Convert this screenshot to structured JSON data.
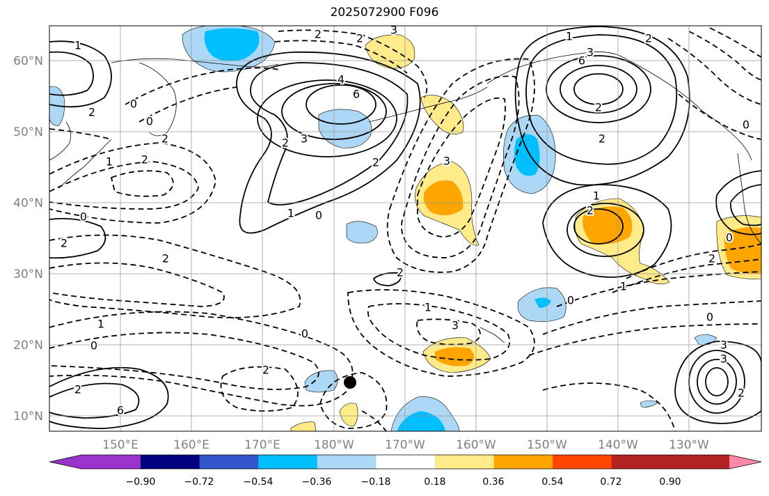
{
  "title": "2025072900 F096",
  "map": {
    "lon_ticks": [
      "150°E",
      "160°E",
      "170°E",
      "180°W",
      "170°W",
      "160°W",
      "150°W",
      "140°W",
      "130°W"
    ],
    "lat_ticks": [
      "60°N",
      "50°N",
      "40°N",
      "30°N",
      "20°N",
      "10°N"
    ],
    "contour_labels": [
      "1",
      "2",
      "0",
      "2",
      "2",
      "1",
      "0",
      "2",
      "2",
      "3",
      "4",
      "6",
      "2",
      "3",
      "2",
      "1",
      "0",
      "0",
      "2",
      "3",
      "1",
      "2",
      "3",
      "6",
      "2",
      "2",
      "1",
      "2",
      "0",
      "0",
      "2",
      "2",
      "1",
      "0",
      "2",
      "1",
      "0",
      "1",
      "0",
      "3",
      "2",
      "0",
      "2",
      "6",
      "2",
      "3",
      "3"
    ]
  },
  "colorbar": {
    "ticks": [
      "−0.90",
      "−0.72",
      "−0.54",
      "−0.36",
      "−0.18",
      "0.18",
      "0.36",
      "0.54",
      "0.72",
      "0.90"
    ],
    "colors": [
      "#9933cc",
      "#000080",
      "#3355cc",
      "#00bfff",
      "#add8f5",
      "#ffffff",
      "#ffeb8a",
      "#ffa500",
      "#ff4500",
      "#b22222",
      "#ff88aa"
    ]
  }
}
